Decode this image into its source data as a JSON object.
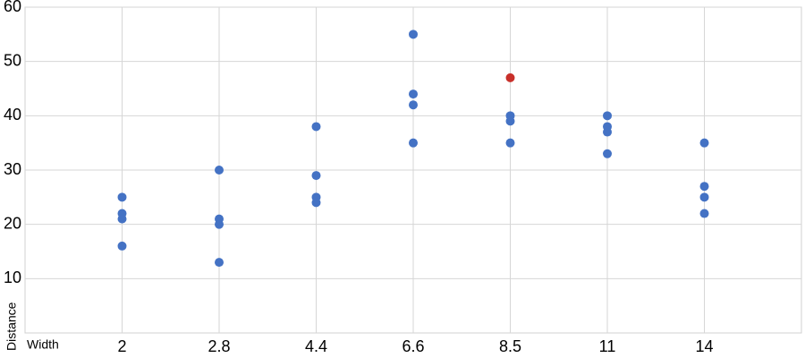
{
  "chart_data": {
    "type": "scatter",
    "x_label": "Width",
    "y_label": "Distance",
    "categories": [
      "2",
      "2.8",
      "4.4",
      "6.6",
      "8.5",
      "11",
      "14"
    ],
    "values": [
      [
        25,
        22,
        21,
        16
      ],
      [
        30,
        21,
        20,
        13
      ],
      [
        38,
        29,
        25,
        24
      ],
      [
        55,
        44,
        42,
        35
      ],
      [
        47,
        40,
        39,
        35
      ],
      [
        40,
        38,
        37,
        33
      ],
      [
        35,
        27,
        25,
        22
      ]
    ],
    "color": "#4472c4",
    "highlight": [
      4,
      0
    ],
    "highlight_color": "#c8302a",
    "ylim": [
      0,
      60
    ],
    "yticks": [
      10,
      20,
      30,
      40,
      50,
      60
    ],
    "grid": true
  }
}
